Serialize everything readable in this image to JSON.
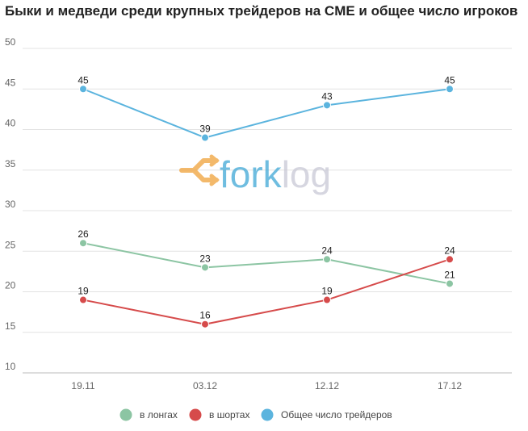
{
  "title": "Быки и медведи среди крупных трейдеров на CME и общее число игроков",
  "watermark": {
    "text": "forklog",
    "logo_color": "#f0a23a",
    "text_color": "#3fa8d6"
  },
  "chart_data": {
    "type": "line",
    "title": "Быки и медведи среди крупных трейдеров на CME и общее число игроков",
    "categories": [
      "19.11",
      "03.12",
      "12.12",
      "17.12"
    ],
    "y_ticks": [
      10,
      15,
      20,
      25,
      30,
      35,
      40,
      45,
      50
    ],
    "ylim": [
      10,
      50
    ],
    "grid": true,
    "legend_position": "bottom",
    "series": [
      {
        "name": "в лонгах",
        "color": "#8cc5a3",
        "values": [
          26,
          23,
          24,
          21
        ]
      },
      {
        "name": "в шортах",
        "color": "#d64b4b",
        "values": [
          19,
          16,
          19,
          24
        ]
      },
      {
        "name": "Общее число трейдеров",
        "color": "#5bb4de",
        "values": [
          45,
          39,
          43,
          45
        ]
      }
    ]
  }
}
